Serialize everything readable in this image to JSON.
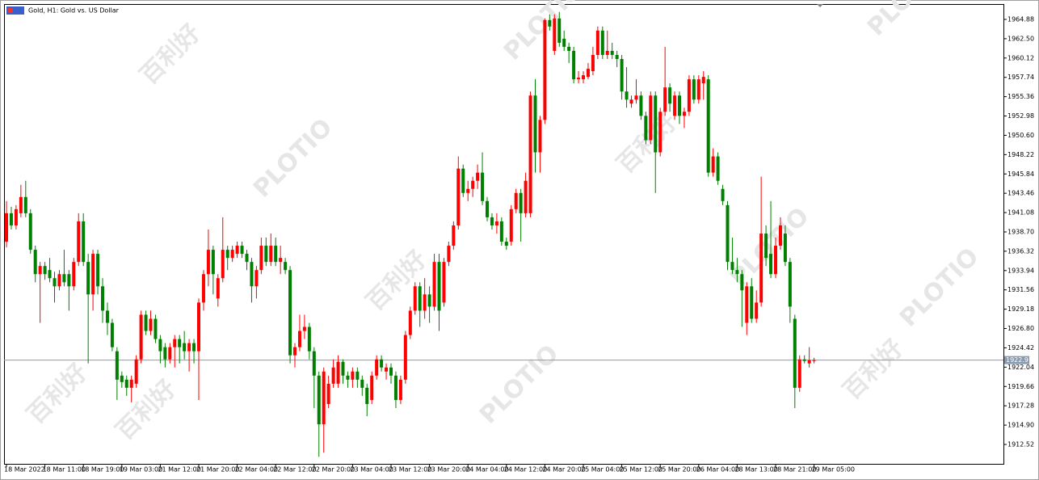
{
  "chart_data": {
    "type": "candlestick",
    "title": "Gold, H1:  Gold vs. US Dollar",
    "watermark": [
      "百利好",
      "PLOTIO"
    ],
    "up_color": "#ff0000",
    "down_color": "#008000",
    "ylim": [
      1910.13,
      1966.77
    ],
    "yticks": [
      1964.88,
      {
        "value": 1962.5,
        "label": "1962.50"
      },
      1960.12,
      1957.74,
      1955.36,
      1952.98,
      {
        "value": 1950.6,
        "label": "1950.60"
      },
      1948.22,
      1945.84,
      1943.46,
      1941.08,
      {
        "value": 1938.7,
        "label": "1938.70"
      },
      1936.32,
      1933.94,
      1931.56,
      1929.18,
      {
        "value": 1926.8,
        "label": "1926.80"
      },
      1924.42,
      1922.04,
      1919.66,
      1917.28,
      {
        "value": 1914.9,
        "label": "1914.90"
      },
      1912.52
    ],
    "current_price": 1922.91,
    "categories": [
      "18 Mar 2022",
      null,
      null,
      null,
      null,
      null,
      null,
      null,
      "18 Mar 11:00",
      null,
      null,
      null,
      null,
      null,
      null,
      null,
      "18 Mar 19:00",
      null,
      null,
      null,
      null,
      null,
      null,
      null,
      "19 Mar 03:00",
      null,
      null,
      null,
      null,
      null,
      null,
      null,
      "21 Mar 12:00",
      null,
      null,
      null,
      null,
      null,
      null,
      null,
      "21 Mar 20:00",
      null,
      null,
      null,
      null,
      null,
      null,
      null,
      "22 Mar 04:00",
      null,
      null,
      null,
      null,
      null,
      null,
      null,
      "22 Mar 12:00",
      null,
      null,
      null,
      null,
      null,
      null,
      null,
      "22 Mar 20:00",
      null,
      null,
      null,
      null,
      null,
      null,
      null,
      "23 Mar 04:00",
      null,
      null,
      null,
      null,
      null,
      null,
      null,
      "23 Mar 12:00",
      null,
      null,
      null,
      null,
      null,
      null,
      null,
      "23 Mar 20:00",
      null,
      null,
      null,
      null,
      null,
      null,
      null,
      "24 Mar 04:00",
      null,
      null,
      null,
      null,
      null,
      null,
      null,
      "24 Mar 12:00",
      null,
      null,
      null,
      null,
      null,
      null,
      null,
      "24 Mar 20:00",
      null,
      null,
      null,
      null,
      null,
      null,
      null,
      "25 Mar 04:00",
      null,
      null,
      null,
      null,
      null,
      null,
      null,
      "25 Mar 12:00",
      null,
      null,
      null,
      null,
      null,
      null,
      null,
      "25 Mar 20:00",
      null,
      null,
      null,
      null,
      null,
      null,
      null,
      "26 Mar 04:00",
      null,
      null,
      null,
      null,
      null,
      null,
      null,
      "28 Mar 13:00",
      null,
      null,
      null,
      null,
      null,
      null,
      null,
      "28 Mar 21:00",
      null,
      null,
      null,
      null,
      null,
      null,
      null,
      "29 Mar 05:00"
    ],
    "ohlc": [
      [
        1937.5,
        1942.5,
        1936.8,
        1941
      ],
      [
        1941,
        1941.8,
        1939,
        1939.5
      ],
      [
        1939.5,
        1942,
        1939,
        1941.5
      ],
      [
        1941,
        1944.5,
        1940.5,
        1943
      ],
      [
        1943,
        1945,
        1940.5,
        1941
      ],
      [
        1941,
        1941.5,
        1936,
        1936.5
      ],
      [
        1936.5,
        1937,
        1932.5,
        1933.5
      ],
      [
        1933.5,
        1935,
        1927.5,
        1934.5
      ],
      [
        1934.5,
        1935,
        1932.8,
        1933.5
      ],
      [
        1934,
        1935.5,
        1932.5,
        1933
      ],
      [
        1933,
        1933.8,
        1930,
        1932
      ],
      [
        1932,
        1934,
        1931.5,
        1933.5
      ],
      [
        1933.5,
        1936.5,
        1932,
        1932.5
      ],
      [
        1933.5,
        1934,
        1929,
        1932
      ],
      [
        1932,
        1935.5,
        1931.5,
        1935
      ],
      [
        1935,
        1941,
        1934.5,
        1940
      ],
      [
        1940,
        1941,
        1934.5,
        1935
      ],
      [
        1935,
        1936,
        1922.5,
        1931
      ],
      [
        1931,
        1936.5,
        1929,
        1936
      ],
      [
        1936,
        1936.5,
        1931,
        1932
      ],
      [
        1932,
        1933,
        1927.5,
        1929
      ],
      [
        1929,
        1930,
        1926,
        1927.5
      ],
      [
        1927.5,
        1928,
        1924,
        1924.5
      ],
      [
        1924,
        1924.5,
        1918,
        1920.5
      ],
      [
        1921,
        1921.5,
        1919.5,
        1920.2
      ],
      [
        1920.5,
        1921,
        1918.5,
        1919.5
      ],
      [
        1919.5,
        1921,
        1917.7,
        1920.5
      ],
      [
        1920,
        1923.5,
        1919.5,
        1923
      ],
      [
        1923,
        1929,
        1922.5,
        1928.5
      ],
      [
        1928.5,
        1929,
        1926,
        1926.5
      ],
      [
        1926.5,
        1929,
        1926,
        1928
      ],
      [
        1928,
        1928.5,
        1925,
        1925.5
      ],
      [
        1925.5,
        1926,
        1922.5,
        1924
      ],
      [
        1924.5,
        1925,
        1922,
        1923
      ],
      [
        1923,
        1925,
        1922.5,
        1924.5
      ],
      [
        1924.5,
        1926,
        1922,
        1925.5
      ],
      [
        1925.5,
        1926,
        1922.5,
        1924.5
      ],
      [
        1925,
        1926.5,
        1923,
        1924
      ],
      [
        1924,
        1925.5,
        1921.5,
        1925
      ],
      [
        1925,
        1925.5,
        1922.5,
        1924
      ],
      [
        1924,
        1930.5,
        1918,
        1930
      ],
      [
        1930,
        1934,
        1929,
        1933.5
      ],
      [
        1933.5,
        1939,
        1932,
        1936.5
      ],
      [
        1936.5,
        1937,
        1931,
        1933.5
      ],
      [
        1930.5,
        1933.5,
        1929.5,
        1933
      ],
      [
        1933,
        1940.5,
        1932.5,
        1936.5
      ],
      [
        1936.5,
        1937,
        1934,
        1935.5
      ],
      [
        1935.5,
        1937,
        1935,
        1936.5
      ],
      [
        1936,
        1937.5,
        1935.5,
        1937
      ],
      [
        1937,
        1937.5,
        1935.5,
        1936
      ],
      [
        1936,
        1936.5,
        1934,
        1935
      ],
      [
        1935,
        1935.5,
        1930,
        1932
      ],
      [
        1932,
        1934.5,
        1930.5,
        1934
      ],
      [
        1934,
        1938,
        1933.5,
        1937
      ],
      [
        1937,
        1938,
        1934.5,
        1935
      ],
      [
        1935,
        1938.5,
        1934.5,
        1937
      ],
      [
        1937,
        1938,
        1934.5,
        1935
      ],
      [
        1935,
        1937,
        1933.5,
        1935.5
      ],
      [
        1935,
        1935.5,
        1933.5,
        1934
      ],
      [
        1934,
        1934.5,
        1922.5,
        1923.5
      ],
      [
        1923.5,
        1925,
        1922,
        1924.5
      ],
      [
        1924.5,
        1928.5,
        1924,
        1926.5
      ],
      [
        1926.5,
        1928.5,
        1925.5,
        1927
      ],
      [
        1927,
        1927.5,
        1923,
        1924
      ],
      [
        1924,
        1924.5,
        1917,
        1921
      ],
      [
        1921,
        1921.5,
        1911,
        1915
      ],
      [
        1915,
        1922,
        1911.5,
        1921.5
      ],
      [
        1917.5,
        1921,
        1917,
        1920
      ],
      [
        1920,
        1923,
        1919.5,
        1922
      ],
      [
        1920,
        1923.5,
        1919.5,
        1922.7
      ],
      [
        1922.7,
        1923,
        1920,
        1921
      ],
      [
        1921,
        1921.5,
        1919.5,
        1920.5
      ],
      [
        1920.5,
        1922,
        1919.5,
        1921.5
      ],
      [
        1921.5,
        1922,
        1919.5,
        1920.5
      ],
      [
        1920.5,
        1921,
        1918.5,
        1919.5
      ],
      [
        1919.5,
        1920,
        1916,
        1917.5
      ],
      [
        1918,
        1921.5,
        1917.5,
        1921
      ],
      [
        1921,
        1923.5,
        1920.5,
        1923
      ],
      [
        1923,
        1923.5,
        1921.5,
        1922
      ],
      [
        1921.5,
        1922.5,
        1920.5,
        1922
      ],
      [
        1922,
        1922.5,
        1920,
        1921
      ],
      [
        1921,
        1921.5,
        1917,
        1918
      ],
      [
        1918,
        1921,
        1917.5,
        1920.5
      ],
      [
        1920.5,
        1926.5,
        1920,
        1926
      ],
      [
        1926,
        1929.5,
        1925.5,
        1929
      ],
      [
        1929,
        1932.5,
        1928.5,
        1932
      ],
      [
        1932,
        1932.5,
        1927,
        1929
      ],
      [
        1929,
        1933,
        1928,
        1931
      ],
      [
        1931,
        1932,
        1927.5,
        1929.5
      ],
      [
        1929.5,
        1936,
        1929,
        1935
      ],
      [
        1935,
        1936,
        1926.5,
        1929
      ],
      [
        1930,
        1935.5,
        1929.5,
        1935
      ],
      [
        1935,
        1937.5,
        1934.5,
        1937
      ],
      [
        1937,
        1940,
        1936.5,
        1939.5
      ],
      [
        1939.5,
        1948,
        1939,
        1946.5
      ],
      [
        1946.5,
        1947,
        1943,
        1943.5
      ],
      [
        1943.5,
        1945,
        1942.5,
        1944
      ],
      [
        1944,
        1945.5,
        1943,
        1945
      ],
      [
        1945,
        1947,
        1944,
        1946
      ],
      [
        1946,
        1948.5,
        1942,
        1942.5
      ],
      [
        1942.5,
        1943,
        1940,
        1940.5
      ],
      [
        1940.5,
        1941,
        1939,
        1939.5
      ],
      [
        1939.5,
        1941,
        1938.5,
        1940
      ],
      [
        1940,
        1940.5,
        1937,
        1937.5
      ],
      [
        1937.5,
        1938,
        1936.5,
        1937
      ],
      [
        1937.5,
        1942,
        1937,
        1941.5
      ],
      [
        1941.5,
        1944,
        1941,
        1943.5
      ],
      [
        1943.5,
        1944,
        1937.5,
        1941
      ],
      [
        1941,
        1946,
        1940.5,
        1945
      ],
      [
        1941,
        1956,
        1940.5,
        1955.5
      ],
      [
        1955.5,
        1957.5,
        1946,
        1948.5
      ],
      [
        1948.5,
        1953,
        1946,
        1952.5
      ],
      [
        1952.5,
        1965,
        1952,
        1964.8
      ],
      [
        1964.8,
        1965.5,
        1963.5,
        1964
      ],
      [
        1961,
        1965.5,
        1960.5,
        1965
      ],
      [
        1965,
        1965.8,
        1961.5,
        1962
      ],
      [
        1962.5,
        1963.5,
        1961,
        1961.5
      ],
      [
        1961.5,
        1962,
        1959.5,
        1961
      ],
      [
        1961,
        1961.5,
        1957,
        1957.5
      ],
      [
        1957.5,
        1958.5,
        1957,
        1957.7
      ],
      [
        1957.5,
        1958.5,
        1957,
        1958
      ],
      [
        1957.8,
        1959.5,
        1957.5,
        1958.8
      ],
      [
        1958.5,
        1961.5,
        1958,
        1960.5
      ],
      [
        1960.5,
        1964,
        1960,
        1963.5
      ],
      [
        1963.5,
        1964,
        1960,
        1960.5
      ],
      [
        1960.5,
        1963.5,
        1960,
        1961
      ],
      [
        1961,
        1962,
        1960,
        1960.5
      ],
      [
        1960.5,
        1961,
        1959,
        1960
      ],
      [
        1960,
        1960.5,
        1955,
        1956
      ],
      [
        1956,
        1959,
        1954,
        1955
      ],
      [
        1954.5,
        1955.5,
        1954,
        1955
      ],
      [
        1955,
        1957.5,
        1954.5,
        1955.5
      ],
      [
        1955.5,
        1956,
        1952.5,
        1953
      ],
      [
        1953,
        1953.5,
        1949.5,
        1950
      ],
      [
        1950,
        1956,
        1949.5,
        1955.5
      ],
      [
        1955.5,
        1956,
        1943.5,
        1948.5
      ],
      [
        1948.5,
        1954,
        1948,
        1953.5
      ],
      [
        1953.5,
        1961.5,
        1953,
        1956.5
      ],
      [
        1956.5,
        1957,
        1953.5,
        1954.5
      ],
      [
        1953,
        1956,
        1952.5,
        1955.5
      ],
      [
        1955.5,
        1956,
        1952,
        1953
      ],
      [
        1953,
        1954,
        1951.5,
        1953.5
      ],
      [
        1953.5,
        1958,
        1953,
        1957.5
      ],
      [
        1957.5,
        1958,
        1954.5,
        1955
      ],
      [
        1955,
        1958,
        1954.5,
        1957.5
      ],
      [
        1957,
        1958.5,
        1955,
        1957.8
      ],
      [
        1957.5,
        1958,
        1945.5,
        1946
      ],
      [
        1946,
        1949,
        1945.5,
        1948
      ],
      [
        1948,
        1948.5,
        1944.5,
        1945
      ],
      [
        1944,
        1944.5,
        1942,
        1942.5
      ],
      [
        1942,
        1942.5,
        1934,
        1935
      ],
      [
        1935,
        1938,
        1933.5,
        1934
      ],
      [
        1934,
        1935.5,
        1932.5,
        1933.5
      ],
      [
        1933.5,
        1934,
        1927,
        1931.5
      ],
      [
        1927.5,
        1932.5,
        1926,
        1932
      ],
      [
        1932,
        1933,
        1927.5,
        1928
      ],
      [
        1928,
        1931.5,
        1927.5,
        1930
      ],
      [
        1930,
        1945.5,
        1929.5,
        1938.5
      ],
      [
        1938.5,
        1939.5,
        1934.5,
        1935.5
      ],
      [
        1936,
        1942.5,
        1933,
        1933.5
      ],
      [
        1933.5,
        1938,
        1933,
        1937
      ],
      [
        1937,
        1940.5,
        1936.5,
        1939.5
      ],
      [
        1938.5,
        1939.5,
        1934.5,
        1935
      ],
      [
        1935,
        1935.5,
        1927.5,
        1929.5
      ],
      [
        1928,
        1928.5,
        1917,
        1919.5
      ],
      [
        1919.5,
        1923.5,
        1919,
        1923
      ],
      [
        1923,
        1923.5,
        1922.5,
        1922.8
      ],
      [
        1922.5,
        1924.5,
        1922,
        1922.9
      ],
      [
        1922.9,
        1923.2,
        1922.5,
        1922.9
      ]
    ]
  }
}
